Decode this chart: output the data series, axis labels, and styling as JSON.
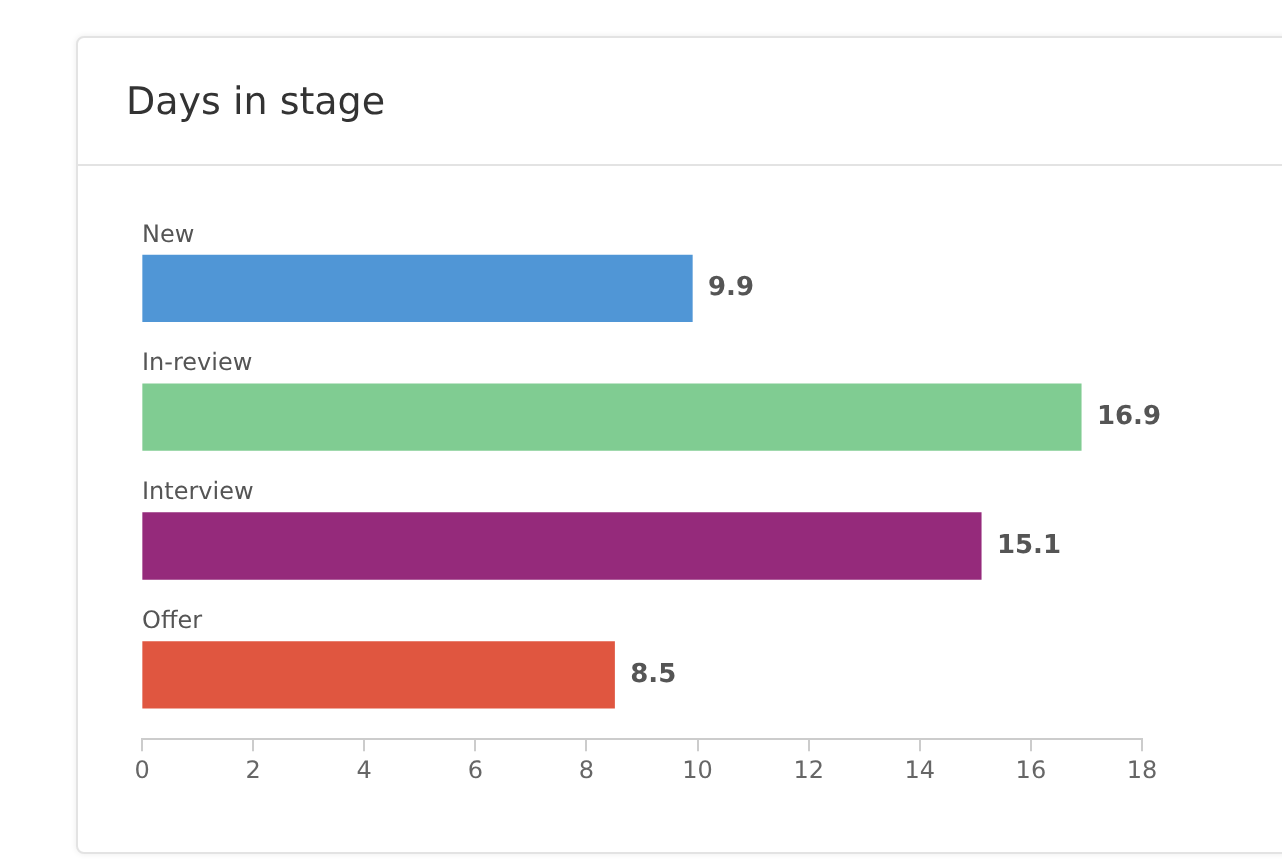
{
  "chart_data": {
    "type": "bar",
    "title": "Days in stage",
    "orientation": "horizontal",
    "categories": [
      "New",
      "In-review",
      "Interview",
      "Offer"
    ],
    "values": [
      9.9,
      16.9,
      15.1,
      8.5
    ],
    "colors": [
      "#5096d6",
      "#80cc92",
      "#952a7b",
      "#e05640"
    ],
    "xlim": [
      0,
      18
    ],
    "xticks": [
      0,
      2,
      4,
      6,
      8,
      10,
      12,
      14,
      16,
      18
    ],
    "data_labels": true,
    "grid": false,
    "legend": false
  }
}
